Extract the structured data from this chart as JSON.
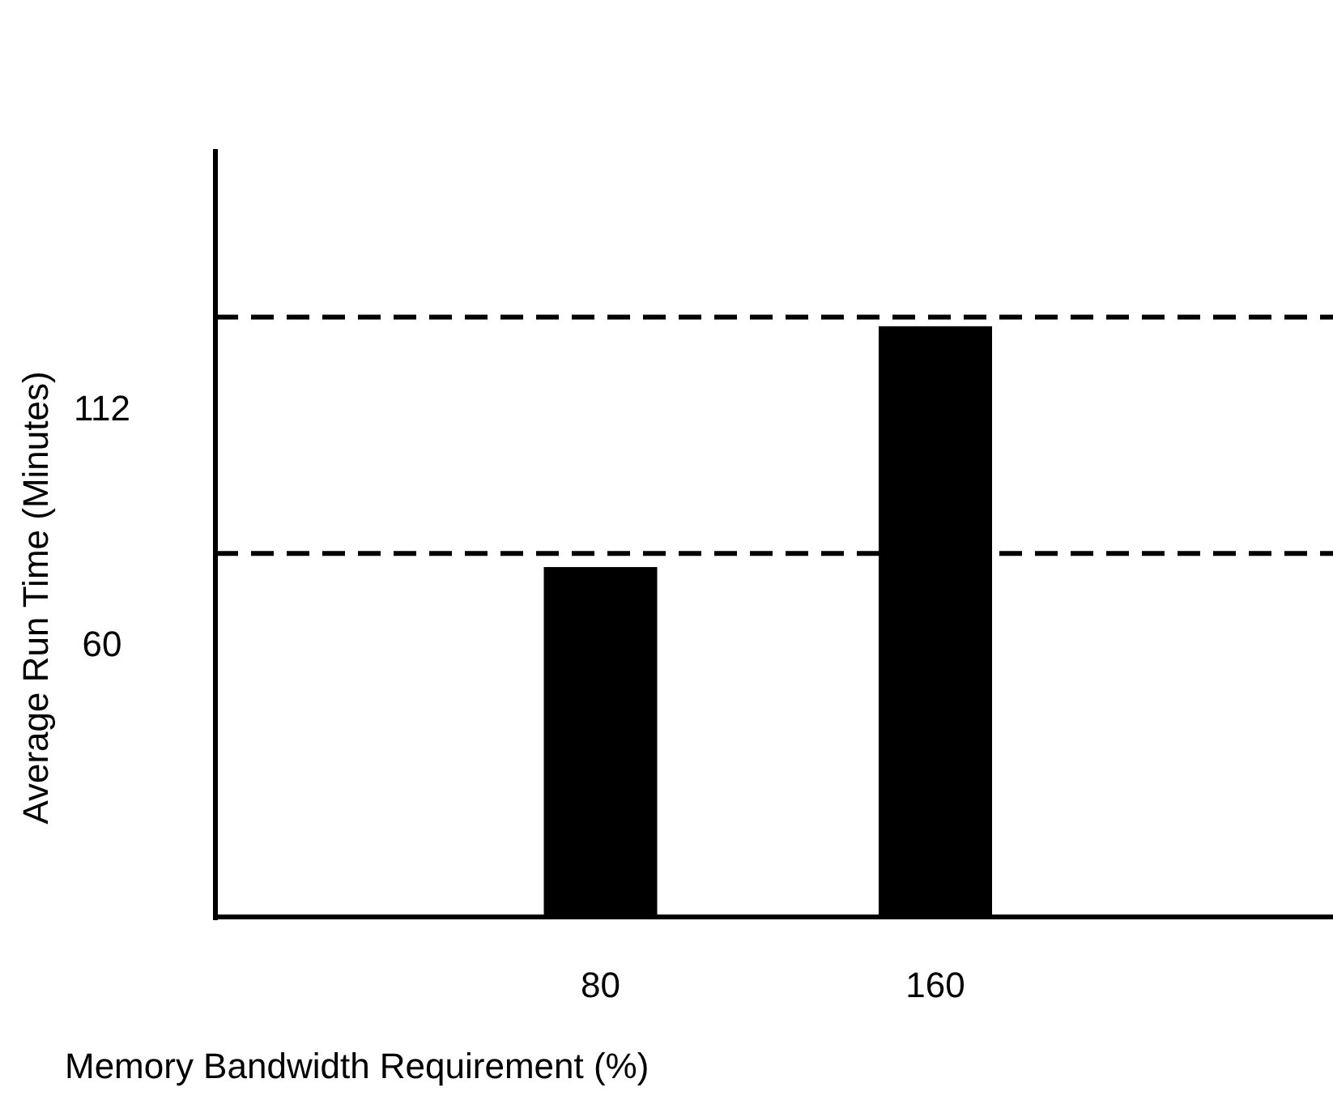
{
  "chart_data": {
    "type": "bar",
    "xlabel": "Memory Bandwidth Requirement (%)",
    "ylabel": "Average Run Time (Minutes)",
    "x": [
      80,
      160
    ],
    "values": [
      77,
      130
    ],
    "color": "#000000",
    "xlim": [
      -12,
      255
    ],
    "xticks": [
      80,
      160
    ],
    "ylim": [
      0,
      169
    ],
    "yticks": [
      60,
      112
    ],
    "ref_lines": [
      {
        "axis": "y",
        "value": 80,
        "line_style": "dashed",
        "color": "#000000"
      },
      {
        "axis": "y",
        "value": 132,
        "line_style": "dashed",
        "color": "#000000"
      }
    ],
    "grid": false
  }
}
